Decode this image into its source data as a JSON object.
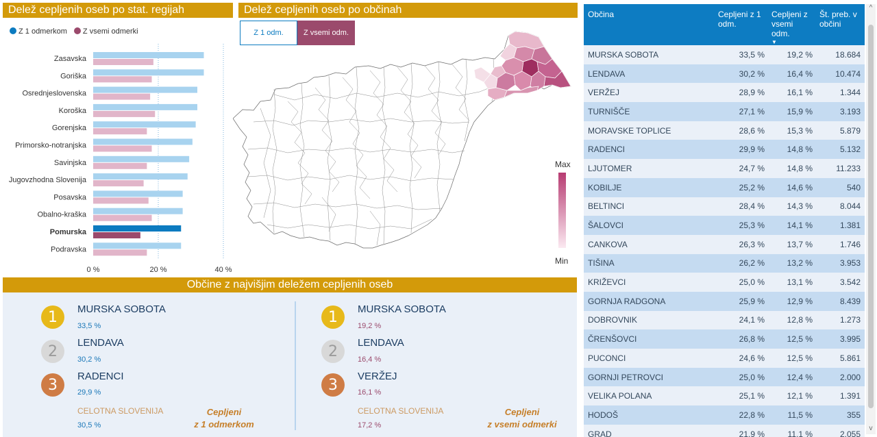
{
  "regions_panel": {
    "title": "Delež cepljenih oseb po stat. regijah",
    "legend": [
      {
        "label": "Z 1 odmerkom",
        "color": "#0c7bc0"
      },
      {
        "label": "Z vsemi odmerki",
        "color": "#9b4a6c"
      }
    ]
  },
  "chart_data": {
    "type": "bar",
    "orientation": "horizontal",
    "categories": [
      "Zasavska",
      "Goriška",
      "Osrednjeslovenska",
      "Koroška",
      "Gorenjska",
      "Primorsko-notranjska",
      "Savinjska",
      "Jugovzhodna Slovenija",
      "Posavska",
      "Obalno-kraška",
      "Pomurska",
      "Podravska"
    ],
    "highlighted_category": "Pomurska",
    "series": [
      {
        "name": "Z 1 odmerkom",
        "values": [
          34.0,
          34.0,
          32.0,
          32.0,
          31.5,
          30.5,
          29.5,
          29.0,
          27.5,
          27.5,
          27.0,
          27.0
        ],
        "color": "#a8d3ef",
        "highlight_color": "#0c7bc0"
      },
      {
        "name": "Z vsemi odmerki",
        "values": [
          18.5,
          18.0,
          17.5,
          19.0,
          16.5,
          18.0,
          16.5,
          15.5,
          17.0,
          18.0,
          14.5,
          16.5
        ],
        "color": "#e1b5c9",
        "highlight_color": "#9b4a6c"
      }
    ],
    "xticks": [
      "0 %",
      "20 %",
      "40 %"
    ],
    "xlim": [
      0,
      40
    ],
    "grid": "dotted vertical"
  },
  "map_panel": {
    "title": "Delež cepljenih oseb po občinah",
    "buttons": {
      "first": "Z 1 odm.",
      "all": "Z vsemi odm."
    },
    "legend_max": "Max",
    "legend_min": "Min"
  },
  "top_panel": {
    "title": "Občine z najvišjim deležem cepljenih oseb",
    "left": {
      "ranks": [
        {
          "name": "MURSKA SOBOTA",
          "value": "33,5 %"
        },
        {
          "name": "LENDAVA",
          "value": "30,2 %"
        },
        {
          "name": "RADENCI",
          "value": "29,9 %"
        }
      ],
      "total_label": "CELOTNA SLOVENIJA",
      "total_value": "30,5 %",
      "caption_line1": "Cepljeni",
      "caption_line2": "z 1 odmerkom"
    },
    "right": {
      "ranks": [
        {
          "name": "MURSKA SOBOTA",
          "value": "19,2 %"
        },
        {
          "name": "LENDAVA",
          "value": "16,4 %"
        },
        {
          "name": "VERŽEJ",
          "value": "16,1 %"
        }
      ],
      "total_label": "CELOTNA SLOVENIJA",
      "total_value": "17,2 %",
      "caption_line1": "Cepljeni",
      "caption_line2": "z vsemi odmerki"
    },
    "medal_numbers": [
      "1",
      "2",
      "3"
    ]
  },
  "table": {
    "headers": [
      "Občina",
      "Cepljeni z 1 odm.",
      "Cepljeni z vsemi odm.",
      "Št. preb. v občini"
    ],
    "sort_indicator": "▼",
    "rows": [
      [
        "MURSKA SOBOTA",
        "33,5 %",
        "19,2 %",
        "18.684"
      ],
      [
        "LENDAVA",
        "30,2 %",
        "16,4 %",
        "10.474"
      ],
      [
        "VERŽEJ",
        "28,9 %",
        "16,1 %",
        "1.344"
      ],
      [
        "TURNIŠČE",
        "27,1 %",
        "15,9 %",
        "3.193"
      ],
      [
        "MORAVSKE TOPLICE",
        "28,6 %",
        "15,3 %",
        "5.879"
      ],
      [
        "RADENCI",
        "29,9 %",
        "14,8 %",
        "5.132"
      ],
      [
        "LJUTOMER",
        "24,7 %",
        "14,8 %",
        "11.233"
      ],
      [
        "KOBILJE",
        "25,2 %",
        "14,6 %",
        "540"
      ],
      [
        "BELTINCI",
        "28,4 %",
        "14,3 %",
        "8.044"
      ],
      [
        "ŠALOVCI",
        "25,3 %",
        "14,1 %",
        "1.381"
      ],
      [
        "CANKOVA",
        "26,3 %",
        "13,7 %",
        "1.746"
      ],
      [
        "TIŠINA",
        "26,2 %",
        "13,2 %",
        "3.953"
      ],
      [
        "KRIŽEVCI",
        "25,0 %",
        "13,1 %",
        "3.542"
      ],
      [
        "GORNJA RADGONA",
        "25,9 %",
        "12,9 %",
        "8.439"
      ],
      [
        "DOBROVNIK",
        "24,1 %",
        "12,8 %",
        "1.273"
      ],
      [
        "ČRENŠOVCI",
        "26,8 %",
        "12,5 %",
        "3.995"
      ],
      [
        "PUCONCI",
        "24,6 %",
        "12,5 %",
        "5.861"
      ],
      [
        "GORNJI PETROVCI",
        "25,0 %",
        "12,4 %",
        "2.000"
      ],
      [
        "VELIKA POLANA",
        "25,1 %",
        "12,1 %",
        "1.391"
      ],
      [
        "HODOŠ",
        "22,8 %",
        "11,5 %",
        "355"
      ],
      [
        "GRAD",
        "21,9 %",
        "11,1 %",
        "2.055"
      ]
    ],
    "scroll_up": "^",
    "scroll_down": "v"
  }
}
